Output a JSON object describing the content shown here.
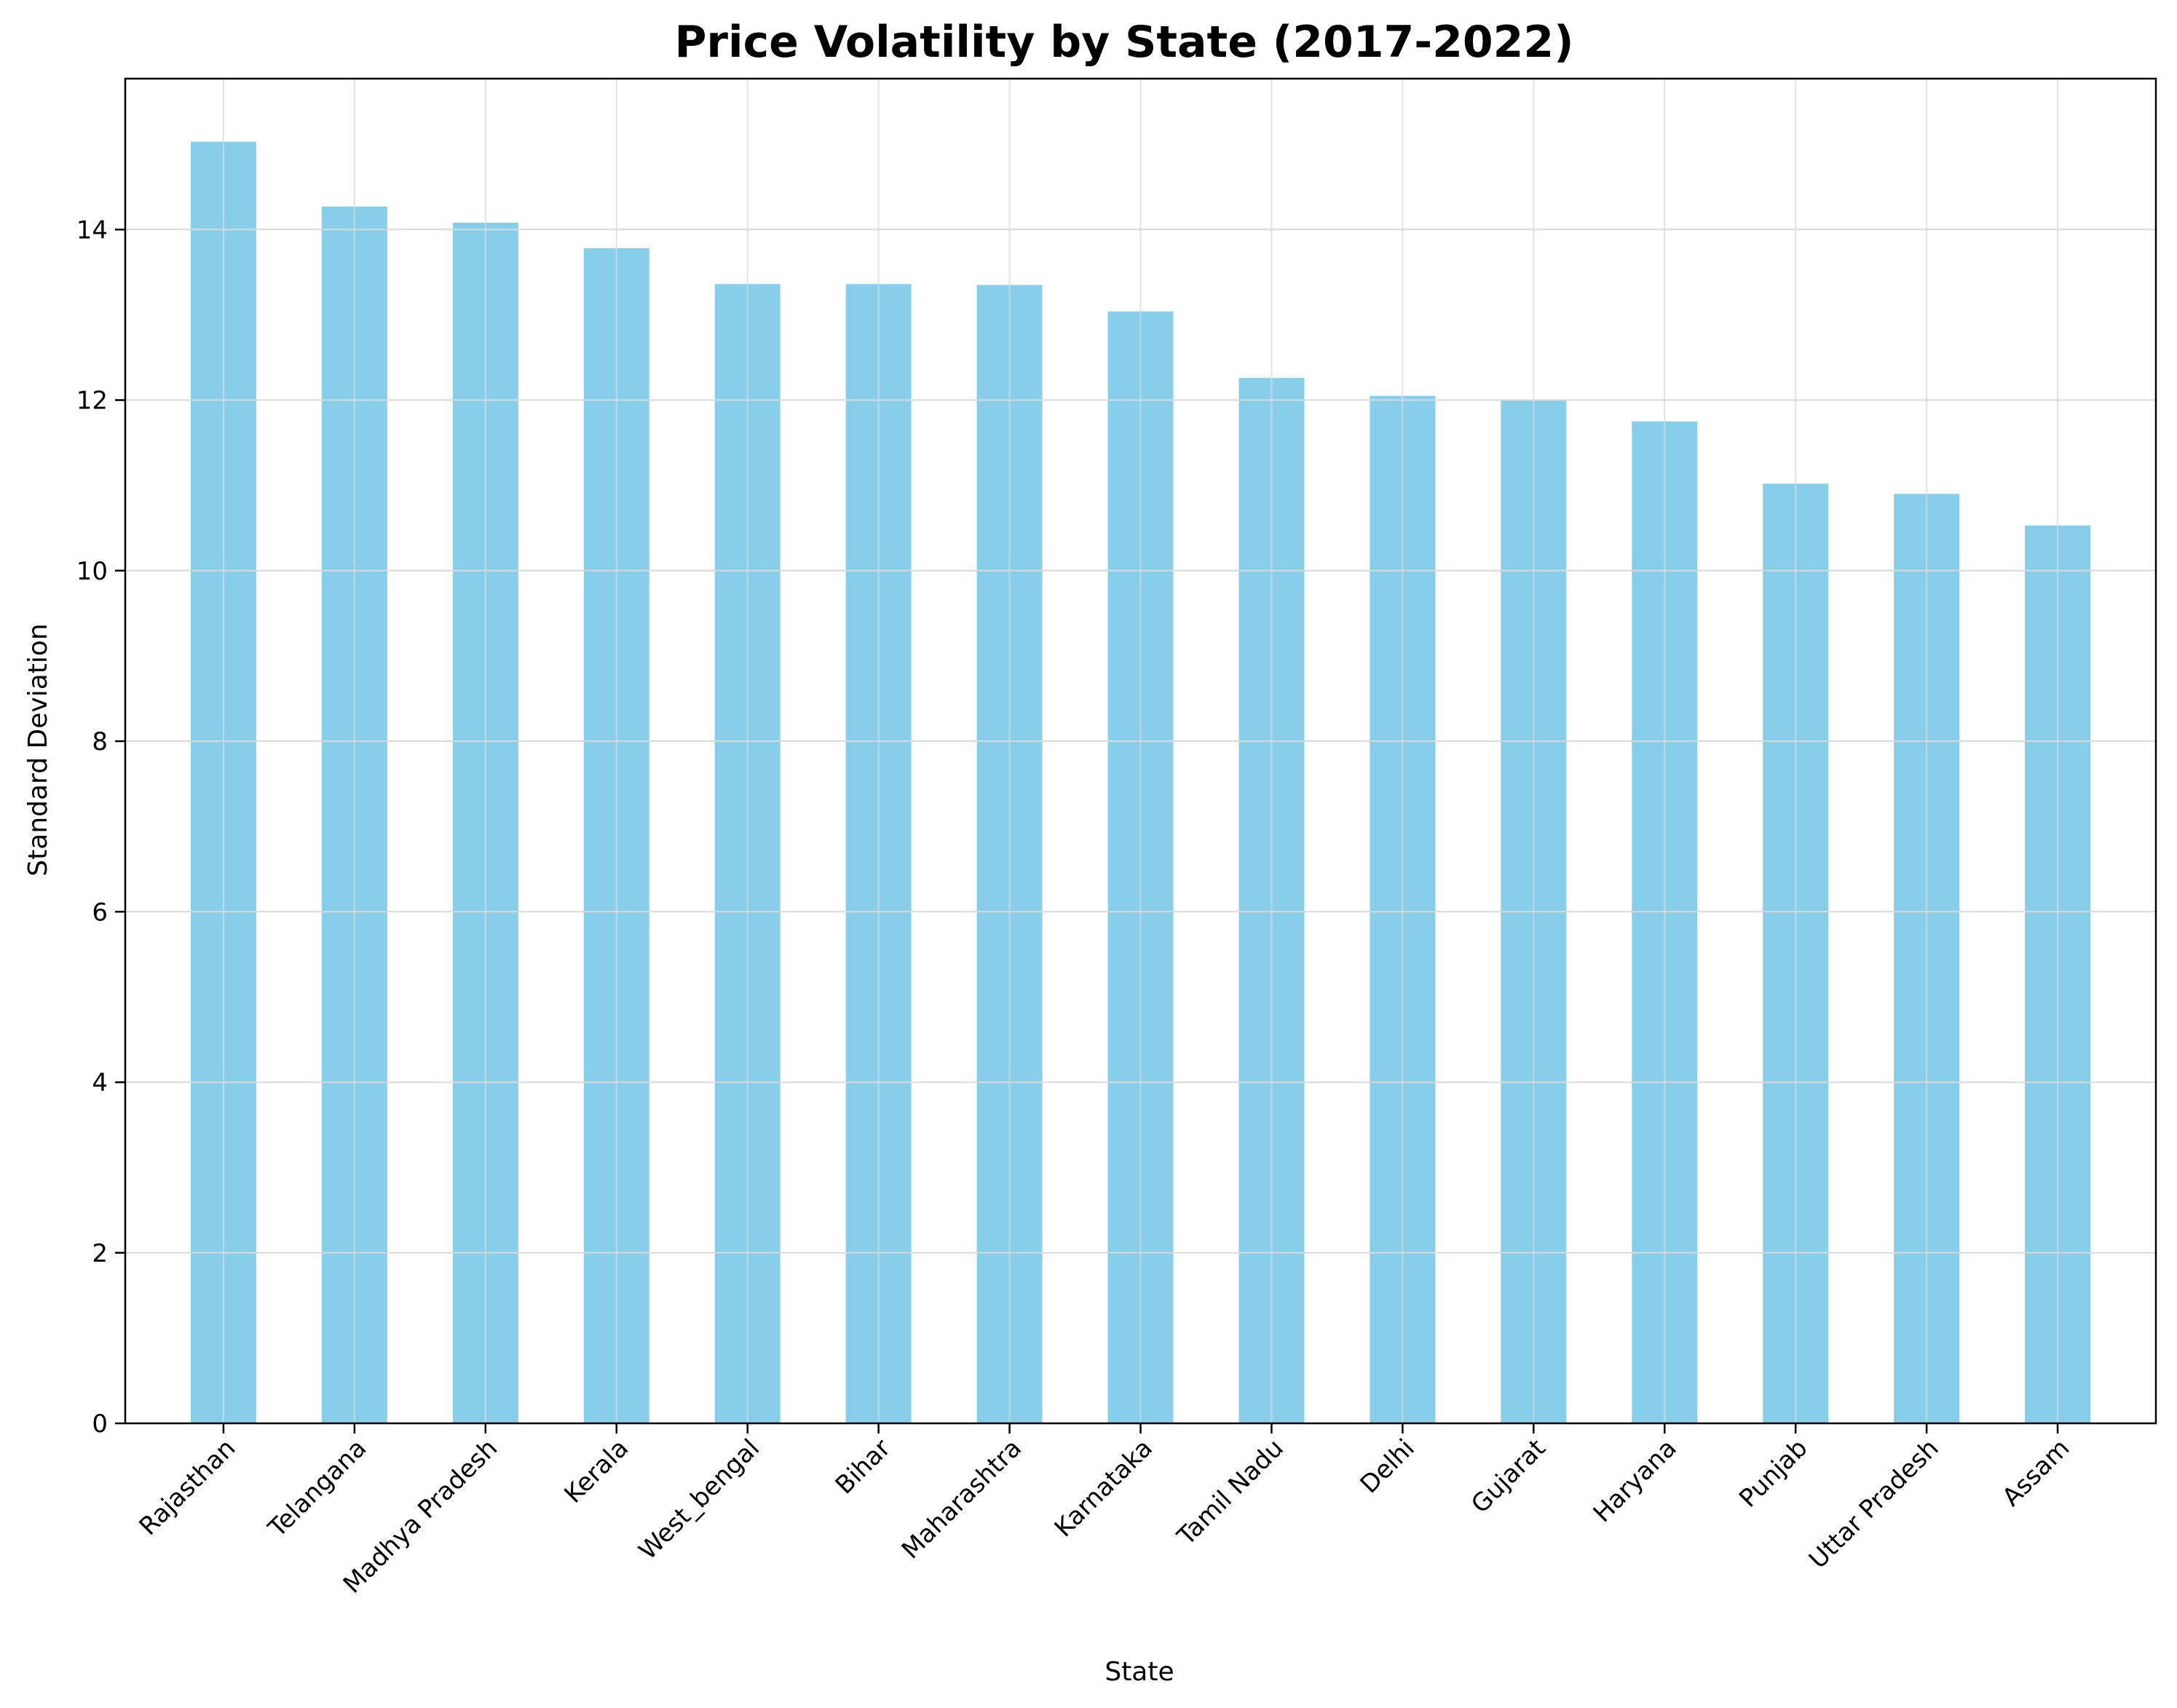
{
  "chart_data": {
    "type": "bar",
    "title": "Price Volatility by State (2017-2022)",
    "xlabel": "State",
    "ylabel": "Standard Deviation",
    "categories": [
      "Rajasthan",
      "Telangana",
      "Madhya Pradesh",
      "Kerala",
      "West_bengal",
      "Bihar",
      "Maharashtra",
      "Karnataka",
      "Tamil Nadu",
      "Delhi",
      "Gujarat",
      "Haryana",
      "Punjab",
      "Uttar Pradesh",
      "Assam"
    ],
    "values": [
      15.03,
      14.27,
      14.08,
      13.78,
      13.36,
      13.36,
      13.35,
      13.04,
      12.26,
      12.05,
      12.0,
      11.75,
      11.02,
      10.9,
      10.53
    ],
    "ylim": [
      0,
      15.77
    ],
    "yticks": [
      0,
      2,
      4,
      6,
      8,
      10,
      12,
      14
    ],
    "grid": true,
    "bar_color": "#87ceeb"
  }
}
